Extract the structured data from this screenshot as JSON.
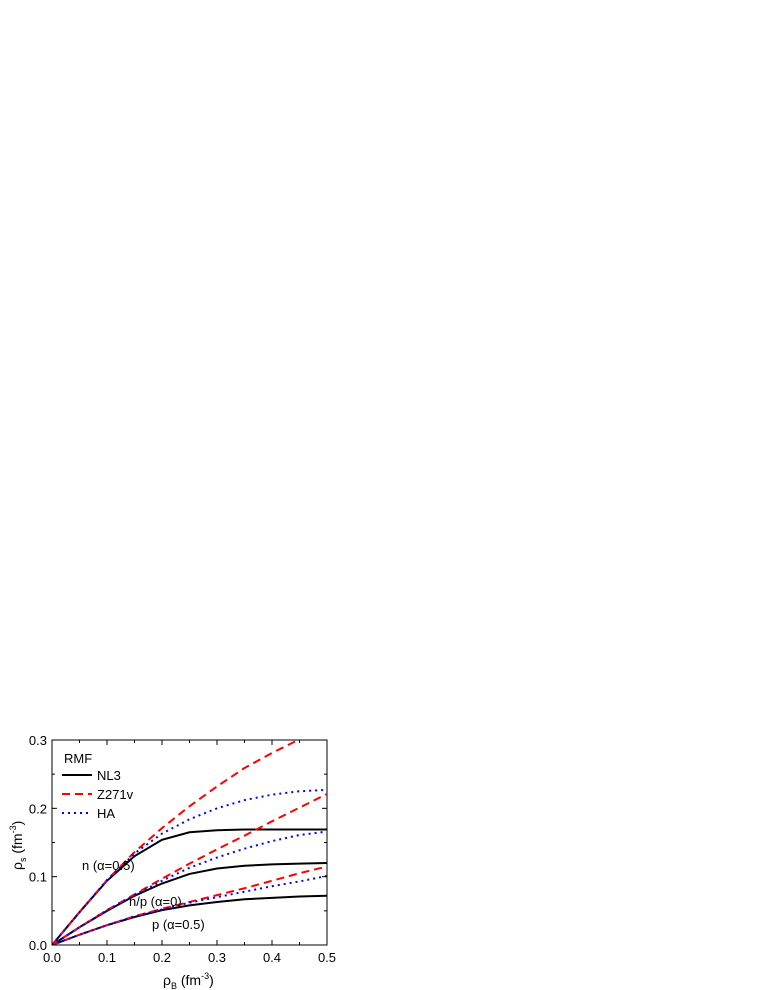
{
  "chart_data": {
    "type": "line",
    "title": "",
    "xlabel": {
      "main": "ρ",
      "sub": "B",
      "units_pre": " (fm",
      "units_exp": "-3",
      "units_post": ")"
    },
    "ylabel": {
      "main": "ρ",
      "sub": "s",
      "units_pre": " (fm",
      "units_exp": "-3",
      "units_post": ")"
    },
    "xlim": [
      0.0,
      0.5
    ],
    "ylim": [
      0.0,
      0.3
    ],
    "xticks": [
      "0.0",
      "0.1",
      "0.2",
      "0.3",
      "0.4",
      "0.5"
    ],
    "yticks": [
      "0.0",
      "0.1",
      "0.2",
      "0.3"
    ],
    "grid": false,
    "legend": {
      "title": "RMF",
      "placement": "top-left",
      "entries": [
        {
          "label": "NL3",
          "color": "#000000",
          "style": "solid"
        },
        {
          "label": "Z271v",
          "color": "#ff0000",
          "style": "dashed"
        },
        {
          "label": "HA",
          "color": "#0000ff",
          "style": "dotted"
        }
      ]
    },
    "annotations": [
      {
        "text": "n (α=0.5)",
        "x": 0.06,
        "y": 0.105
      },
      {
        "text": "n/p (α=0)",
        "x": 0.135,
        "y": 0.053
      },
      {
        "text": "p (α=0.5)",
        "x": 0.175,
        "y": 0.031
      }
    ],
    "x": [
      0.0,
      0.05,
      0.1,
      0.15,
      0.2,
      0.25,
      0.3,
      0.35,
      0.4,
      0.45,
      0.5
    ],
    "series": [
      {
        "label": "NL3",
        "group": "n (α=0.5)",
        "color": "#000000",
        "style": "solid",
        "values": [
          0.0,
          0.048,
          0.094,
          0.13,
          0.154,
          0.165,
          0.168,
          0.169,
          0.169,
          0.169,
          0.169
        ]
      },
      {
        "label": "Z271v",
        "group": "n (α=0.5)",
        "color": "#ff0000",
        "style": "dashed",
        "values": [
          0.0,
          0.048,
          0.095,
          0.136,
          0.171,
          0.203,
          0.232,
          0.259,
          0.281,
          0.301,
          0.32
        ]
      },
      {
        "label": "HA",
        "group": "n (α=0.5)",
        "color": "#0000ff",
        "style": "dotted",
        "values": [
          0.0,
          0.048,
          0.095,
          0.134,
          0.163,
          0.184,
          0.2,
          0.212,
          0.22,
          0.225,
          0.227
        ]
      },
      {
        "label": "NL3",
        "group": "n/p (α=0)",
        "color": "#000000",
        "style": "solid",
        "values": [
          0.0,
          0.026,
          0.05,
          0.072,
          0.09,
          0.104,
          0.112,
          0.116,
          0.118,
          0.119,
          0.12
        ]
      },
      {
        "label": "Z271v",
        "group": "n/p (α=0)",
        "color": "#ff0000",
        "style": "dashed",
        "values": [
          0.0,
          0.026,
          0.051,
          0.074,
          0.097,
          0.119,
          0.14,
          0.16,
          0.181,
          0.201,
          0.221
        ]
      },
      {
        "label": "HA",
        "group": "n/p (α=0)",
        "color": "#0000ff",
        "style": "dotted",
        "values": [
          0.0,
          0.026,
          0.051,
          0.073,
          0.094,
          0.113,
          0.128,
          0.141,
          0.152,
          0.161,
          0.166
        ]
      },
      {
        "label": "NL3",
        "group": "p (α=0.5)",
        "color": "#000000",
        "style": "solid",
        "values": [
          0.0,
          0.015,
          0.029,
          0.041,
          0.051,
          0.058,
          0.063,
          0.067,
          0.069,
          0.071,
          0.072
        ]
      },
      {
        "label": "Z271v",
        "group": "p (α=0.5)",
        "color": "#ff0000",
        "style": "dashed",
        "values": [
          0.0,
          0.015,
          0.029,
          0.042,
          0.053,
          0.063,
          0.073,
          0.083,
          0.094,
          0.105,
          0.115
        ]
      },
      {
        "label": "HA",
        "group": "p (α=0.5)",
        "color": "#0000ff",
        "style": "dotted",
        "values": [
          0.0,
          0.015,
          0.029,
          0.042,
          0.052,
          0.062,
          0.07,
          0.078,
          0.086,
          0.093,
          0.101
        ]
      }
    ]
  }
}
